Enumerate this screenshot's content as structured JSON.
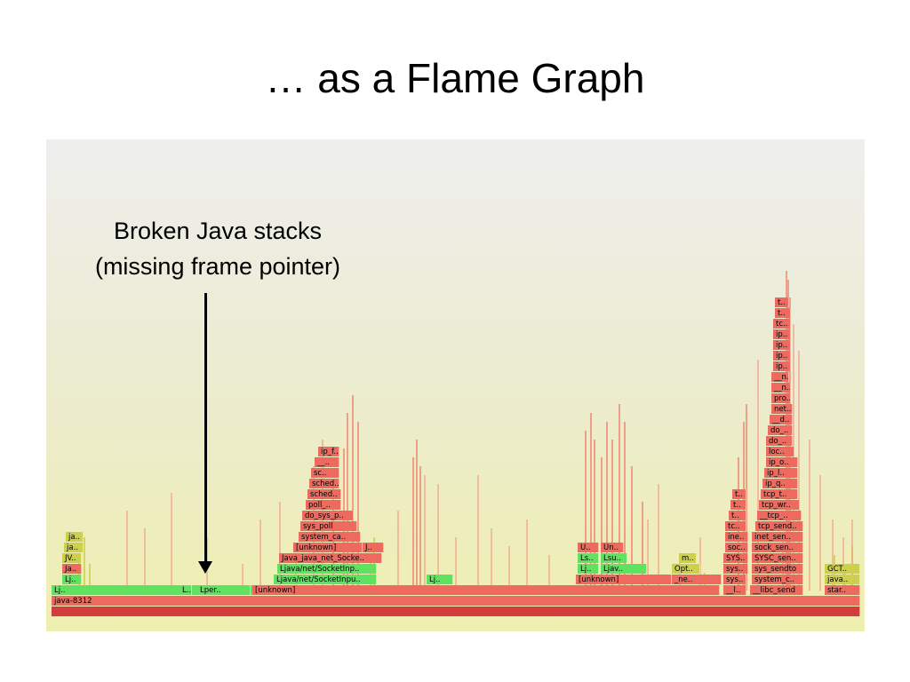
{
  "slide": {
    "title": "… as a Flame Graph",
    "annotation_line1": "Broken Java stacks",
    "annotation_line2": "(missing frame pointer)"
  },
  "colors": {
    "base_red": "#e4584f",
    "red": "#ee6a5e",
    "light_red": "#f49a8a",
    "dark_red": "#d23c3c",
    "green": "#5fe25f",
    "lime": "#a8e25a",
    "yellow": "#cdd04a"
  },
  "flamegraph": {
    "frames": [
      {
        "label": "",
        "c": "dark_red"
      },
      {
        "label": "java-8312",
        "c": "red"
      },
      {
        "label": "Lj..",
        "c": "green"
      },
      {
        "label": "L..",
        "c": "green"
      },
      {
        "label": "Lper..",
        "c": "green"
      },
      {
        "label": "[unknown]",
        "c": "red"
      },
      {
        "label": "__l..",
        "c": "red"
      },
      {
        "label": "__libc_send",
        "c": "red"
      },
      {
        "label": "star..",
        "c": "red"
      },
      {
        "label": "Lj..",
        "c": "green"
      },
      {
        "label": "Ljava/net/SocketInpu..",
        "c": "green"
      },
      {
        "label": "Lj..",
        "c": "green"
      },
      {
        "label": "[unknown]",
        "c": "red"
      },
      {
        "label": "_ne..",
        "c": "red"
      },
      {
        "label": "sys..",
        "c": "red"
      },
      {
        "label": "system_c..",
        "c": "red"
      },
      {
        "label": "java..",
        "c": "yellow"
      },
      {
        "label": "Ja..",
        "c": "red"
      },
      {
        "label": "Ljava/net/SocketInp..",
        "c": "green"
      },
      {
        "label": "Lj..",
        "c": "green"
      },
      {
        "label": "Ljav..",
        "c": "green"
      },
      {
        "label": "Opt..",
        "c": "yellow"
      },
      {
        "label": "sys..",
        "c": "red"
      },
      {
        "label": "sys_sendto",
        "c": "red"
      },
      {
        "label": "GCT..",
        "c": "yellow"
      },
      {
        "label": "JV..",
        "c": "yellow"
      },
      {
        "label": "Java_java_net_Socke..",
        "c": "red"
      },
      {
        "label": "Ls..",
        "c": "green"
      },
      {
        "label": "Lsu..",
        "c": "green"
      },
      {
        "label": "m..",
        "c": "yellow"
      },
      {
        "label": "SYS..",
        "c": "red"
      },
      {
        "label": "SYSC_sen..",
        "c": "red"
      },
      {
        "label": "ja..",
        "c": "yellow"
      },
      {
        "label": "[unknown]",
        "c": "red"
      },
      {
        "label": "J..",
        "c": "red"
      },
      {
        "label": "U..",
        "c": "red"
      },
      {
        "label": "Un..",
        "c": "red"
      },
      {
        "label": "soc..",
        "c": "red"
      },
      {
        "label": "sock_sen..",
        "c": "red"
      },
      {
        "label": "ja..",
        "c": "yellow"
      },
      {
        "label": "system_ca..",
        "c": "red"
      },
      {
        "label": "ine..",
        "c": "red"
      },
      {
        "label": "inet_sen..",
        "c": "red"
      },
      {
        "label": "sys_poll",
        "c": "red"
      },
      {
        "label": "tc..",
        "c": "red"
      },
      {
        "label": "tcp_send..",
        "c": "red"
      },
      {
        "label": "do_sys_p..",
        "c": "red"
      },
      {
        "label": "t..",
        "c": "red"
      },
      {
        "label": "__tcp_..",
        "c": "red"
      },
      {
        "label": "poll_..",
        "c": "red"
      },
      {
        "label": "t..",
        "c": "red"
      },
      {
        "label": "tcp_wr..",
        "c": "red"
      },
      {
        "label": "sched..",
        "c": "red"
      },
      {
        "label": "t..",
        "c": "red"
      },
      {
        "label": "tcp_t..",
        "c": "red"
      },
      {
        "label": "sched..",
        "c": "red"
      },
      {
        "label": "ip_q..",
        "c": "red"
      },
      {
        "label": "sc..",
        "c": "red"
      },
      {
        "label": "ip_l..",
        "c": "red"
      },
      {
        "label": "__..",
        "c": "red"
      },
      {
        "label": "ip_o..",
        "c": "red"
      },
      {
        "label": "ip_f..",
        "c": "red"
      },
      {
        "label": "loc..",
        "c": "red"
      },
      {
        "label": "do_..",
        "c": "red"
      },
      {
        "label": "do_..",
        "c": "red"
      },
      {
        "label": "__d..",
        "c": "red"
      },
      {
        "label": "net..",
        "c": "red"
      },
      {
        "label": "pro..",
        "c": "red"
      },
      {
        "label": "__n..",
        "c": "red"
      },
      {
        "label": "__n..",
        "c": "red"
      },
      {
        "label": "ip..",
        "c": "red"
      },
      {
        "label": "ip..",
        "c": "red"
      },
      {
        "label": "ip..",
        "c": "red"
      },
      {
        "label": "ip..",
        "c": "red"
      },
      {
        "label": "tc..",
        "c": "red"
      },
      {
        "label": "t..",
        "c": "red"
      },
      {
        "label": "t..",
        "c": "red"
      }
    ]
  }
}
